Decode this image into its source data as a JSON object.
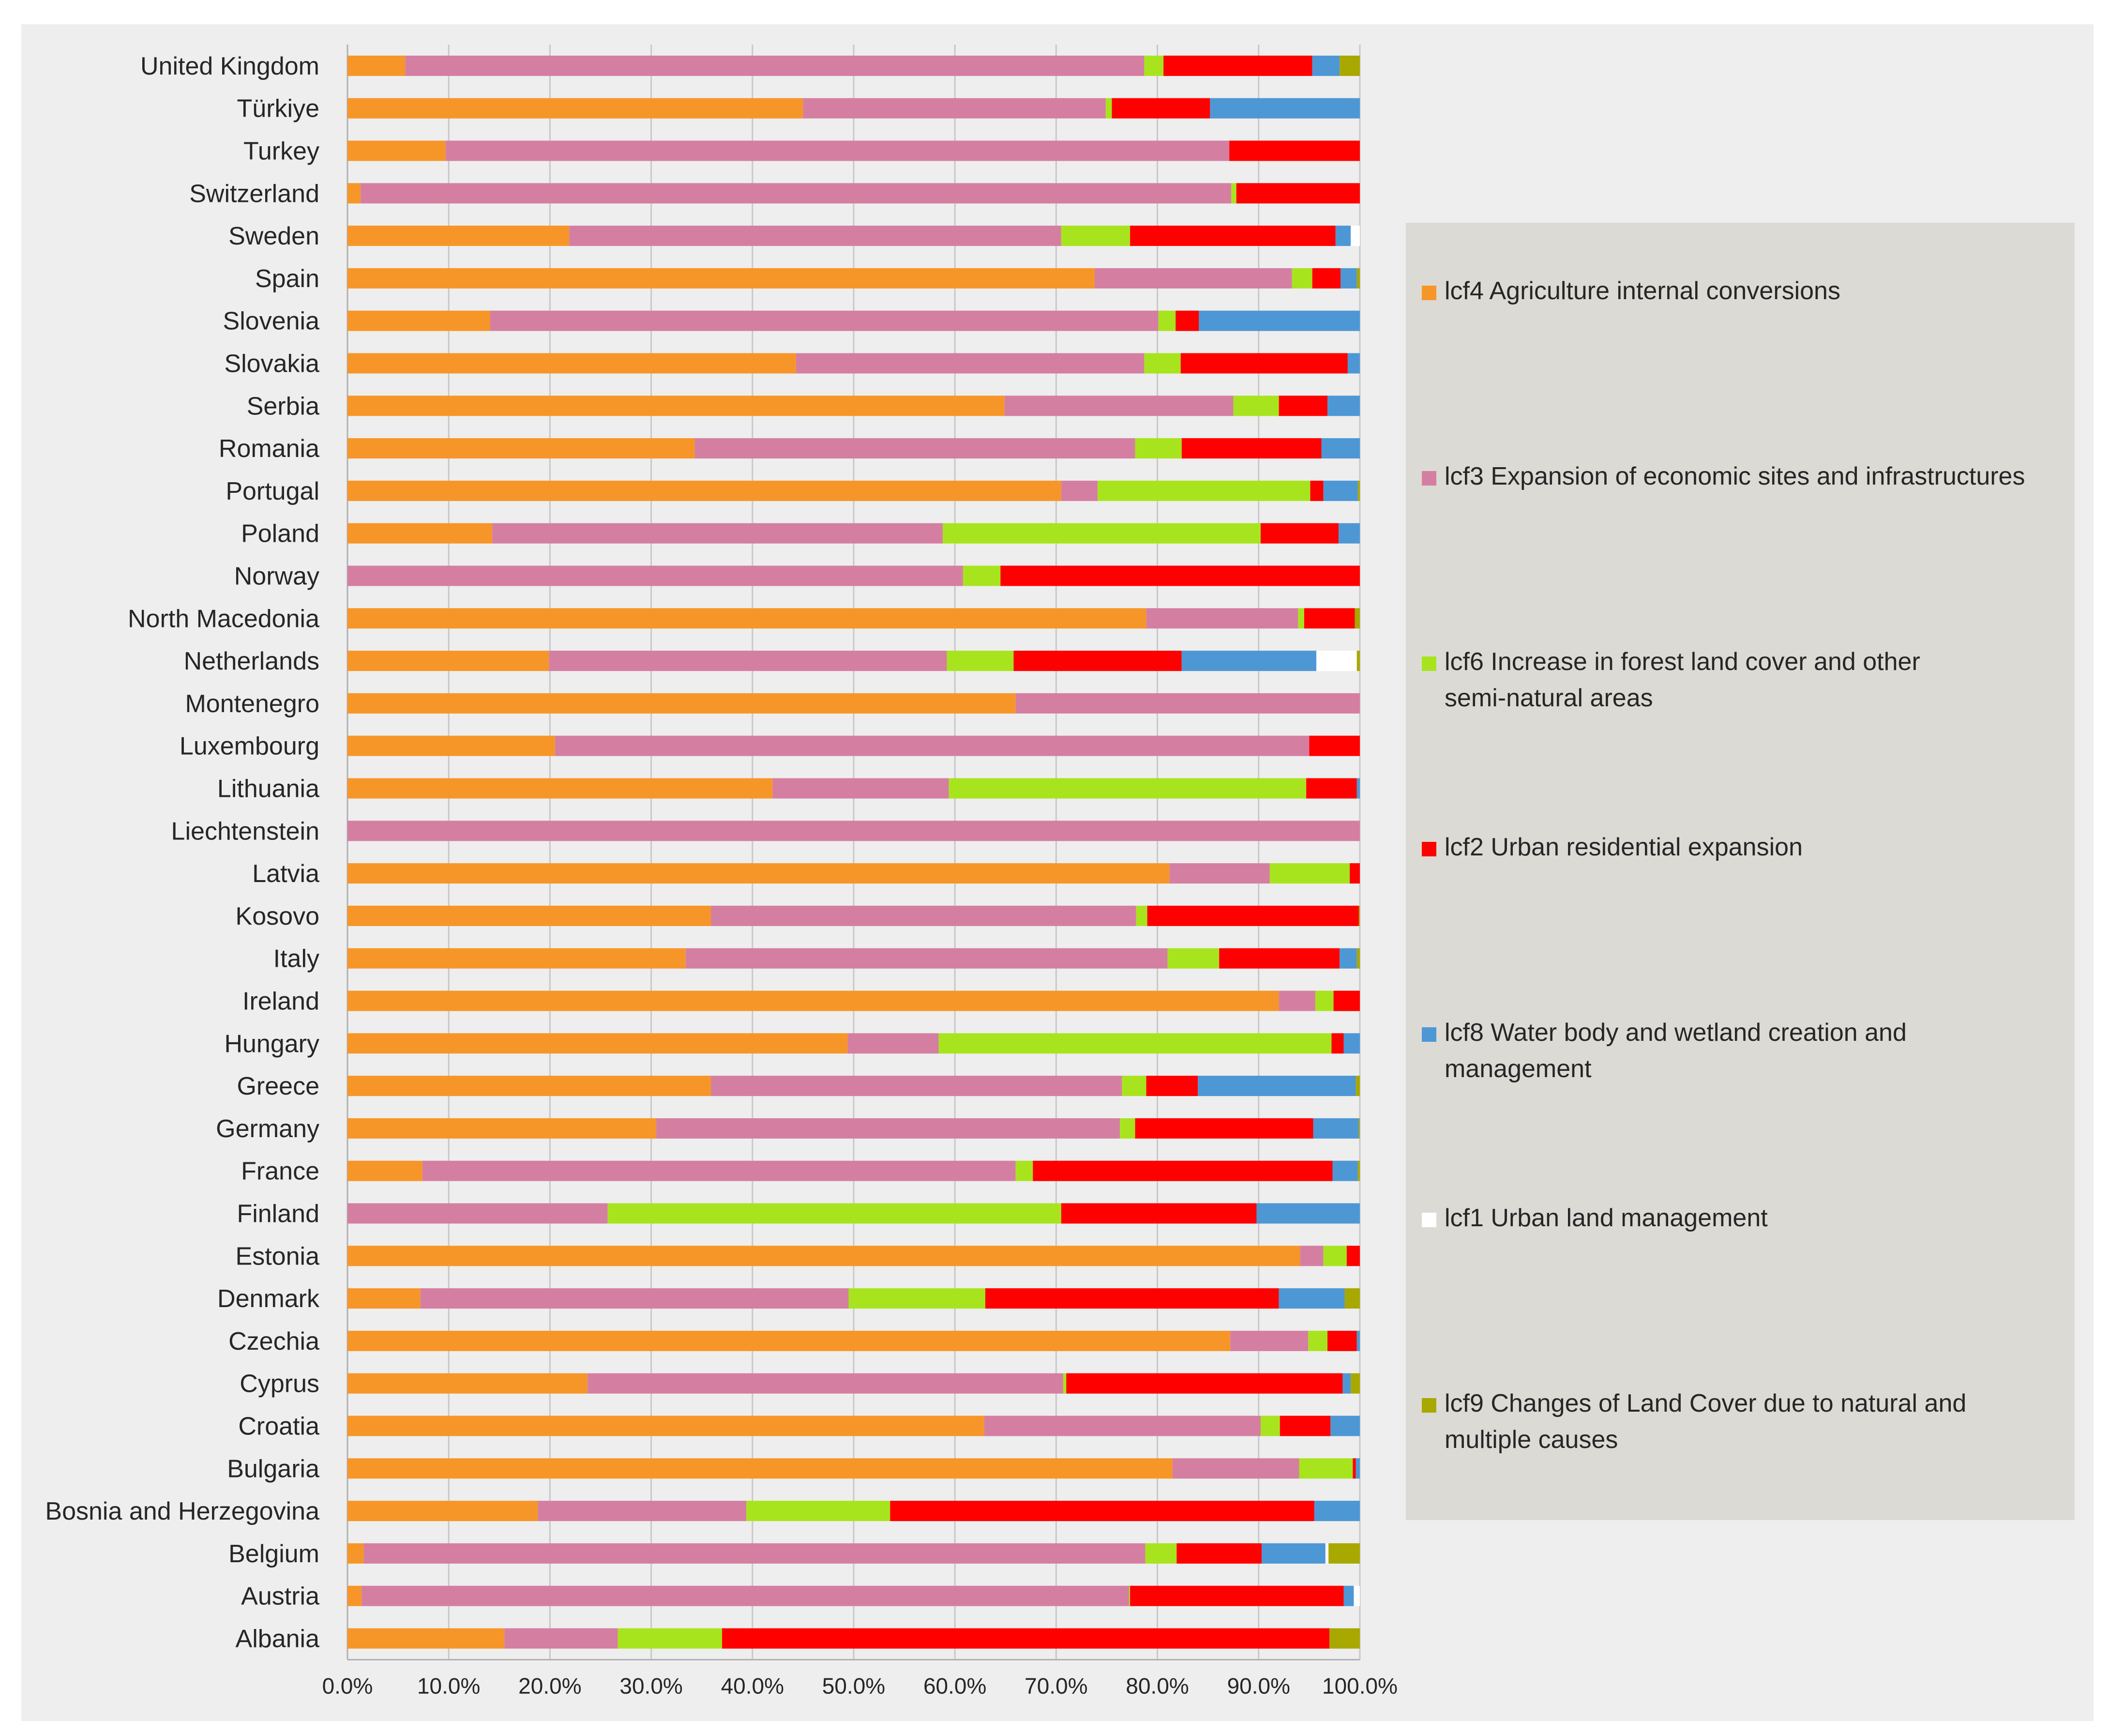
{
  "chart_data": {
    "type": "bar",
    "orientation": "horizontal",
    "stacked": "percent",
    "title": "",
    "xlabel": "",
    "ylabel": "",
    "xlim": [
      0,
      100
    ],
    "x_ticks": [
      "0.0%",
      "10.0%",
      "20.0%",
      "30.0%",
      "40.0%",
      "50.0%",
      "60.0%",
      "70.0%",
      "80.0%",
      "90.0%",
      "100.0%"
    ],
    "grid": true,
    "legend_position": "right",
    "categories": [
      "United Kingdom",
      "Türkiye",
      "Turkey",
      "Switzerland",
      "Sweden",
      "Spain",
      "Slovenia",
      "Slovakia",
      "Serbia",
      "Romania",
      "Portugal",
      "Poland",
      "Norway",
      "North Macedonia",
      "Netherlands",
      "Montenegro",
      "Luxembourg",
      "Lithuania",
      "Liechtenstein",
      "Latvia",
      "Kosovo",
      "Italy",
      "Ireland",
      "Hungary",
      "Greece",
      "Germany",
      "France",
      "Finland",
      "Estonia",
      "Denmark",
      "Czechia",
      "Cyprus",
      "Croatia",
      "Bulgaria",
      "Bosnia and Herzegovina",
      "Belgium",
      "Austria",
      "Albania"
    ],
    "series": [
      {
        "name": "lcf4 Agriculture internal conversions",
        "color": "#F79628",
        "values": [
          5.7,
          45.0,
          9.7,
          1.3,
          21.9,
          73.8,
          14.1,
          44.3,
          64.9,
          34.3,
          70.5,
          14.3,
          0,
          78.9,
          19.9,
          66.0,
          20.5,
          42.0,
          0,
          81.2,
          35.9,
          33.4,
          92.0,
          49.4,
          35.9,
          30.5,
          7.4,
          0,
          94.1,
          7.2,
          87.2,
          23.7,
          62.9,
          81.5,
          18.8,
          1.6,
          1.4,
          15.5
        ]
      },
      {
        "name": "lcf3 Expansion of economic sites and infrastructures",
        "color": "#D47FA2",
        "values": [
          73.0,
          29.9,
          77.4,
          86.0,
          48.6,
          19.5,
          66.0,
          34.4,
          22.6,
          43.5,
          3.6,
          44.5,
          60.8,
          15.0,
          39.3,
          34.0,
          74.5,
          17.4,
          100.0,
          9.9,
          42.0,
          47.6,
          3.6,
          9.0,
          40.6,
          45.8,
          58.6,
          25.7,
          2.3,
          42.3,
          7.7,
          47.0,
          27.3,
          12.5,
          20.6,
          77.2,
          75.8,
          11.2
        ]
      },
      {
        "name": "lcf6 Increase in forest land cover and other semi-natural areas",
        "color": "#A8E41E",
        "values": [
          1.9,
          0.6,
          0,
          0.5,
          6.8,
          2.0,
          1.7,
          3.6,
          4.5,
          4.6,
          21.0,
          31.4,
          3.7,
          0.6,
          6.6,
          0,
          0,
          35.3,
          0,
          7.9,
          1.1,
          5.1,
          1.8,
          38.8,
          2.4,
          1.5,
          1.7,
          44.8,
          2.3,
          13.5,
          1.9,
          0.3,
          1.9,
          5.3,
          14.2,
          3.1,
          0.1,
          10.3
        ]
      },
      {
        "name": "lcf2 Urban residential expansion",
        "color": "#FF0000",
        "values": [
          14.7,
          9.7,
          12.9,
          12.2,
          20.3,
          2.8,
          2.3,
          16.5,
          4.8,
          13.8,
          1.3,
          7.7,
          35.5,
          5.0,
          16.6,
          0,
          5.0,
          5.0,
          0,
          1.4,
          20.9,
          11.9,
          2.6,
          1.2,
          5.1,
          17.6,
          29.6,
          19.3,
          1.3,
          29.0,
          2.9,
          27.3,
          5.0,
          0.3,
          41.9,
          8.4,
          21.1,
          60.0
        ]
      },
      {
        "name": "lcf8 Water body and wetland creation and management",
        "color": "#4E97D5",
        "values": [
          2.7,
          14.8,
          0,
          0,
          1.5,
          1.6,
          15.9,
          1.2,
          3.2,
          3.8,
          3.4,
          2.1,
          0,
          0,
          13.3,
          0,
          0,
          0.3,
          0,
          0,
          0,
          1.7,
          0,
          1.6,
          15.6,
          4.5,
          2.5,
          10.2,
          0,
          6.5,
          0.3,
          0.8,
          3.0,
          0.4,
          4.5,
          6.3,
          1.0,
          0
        ]
      },
      {
        "name": "lcf1 Urban land management",
        "color": "#FFFFFF",
        "values": [
          0,
          0,
          0,
          0,
          0.9,
          0,
          0,
          0,
          0,
          0,
          0,
          0,
          0,
          0,
          4.0,
          0,
          0,
          0,
          0,
          0,
          0,
          0,
          0,
          0,
          0,
          0,
          0,
          0,
          0,
          0,
          0,
          0,
          0,
          0,
          0,
          0.3,
          0.7,
          0
        ]
      },
      {
        "name": "lcf9 Changes of Land Cover due to natural and multiple causes",
        "color": "#A8A800",
        "values": [
          2.0,
          0,
          0,
          0,
          0,
          0.3,
          0,
          0,
          0,
          0,
          0.2,
          0,
          0,
          0.5,
          0.3,
          0,
          0,
          0,
          0,
          0,
          0.1,
          0.3,
          0,
          0,
          0.4,
          0.1,
          0.2,
          0,
          0,
          1.5,
          0,
          0.9,
          0,
          0,
          0,
          3.1,
          0,
          3.0
        ]
      }
    ]
  }
}
